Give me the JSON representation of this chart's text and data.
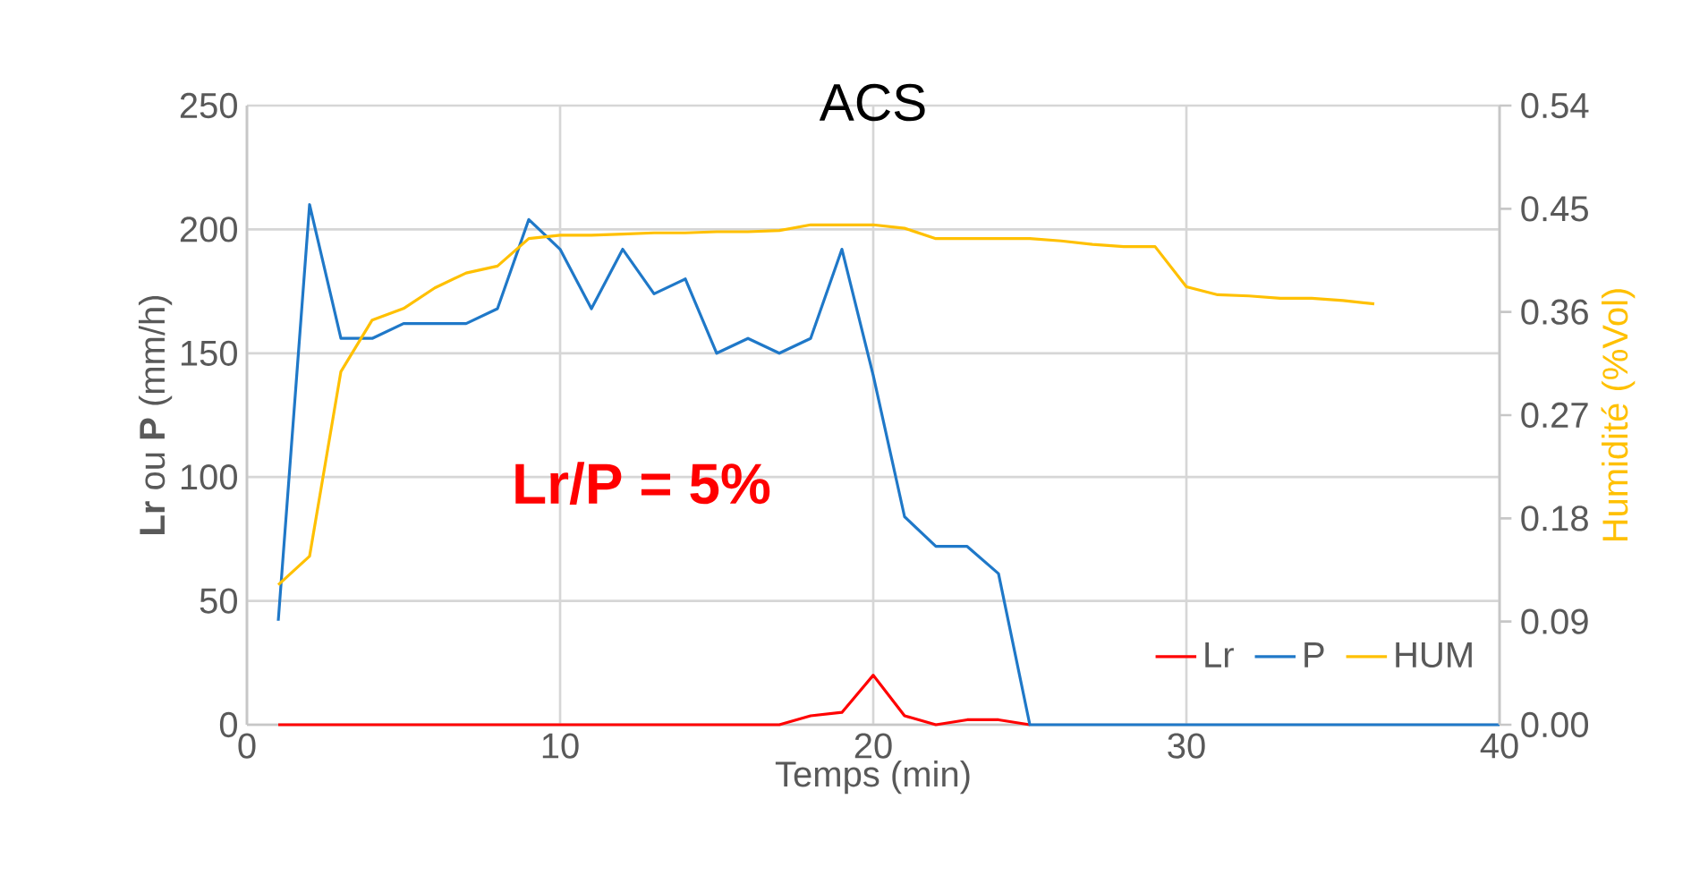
{
  "chart_data": {
    "type": "line",
    "title": "ACS",
    "xlabel": "Temps (min)",
    "ylabel": "**Lr** ou **P** (mm/h)",
    "y2label": "Humidité (%Vol)",
    "annotations": [
      "Lr/P = 5%"
    ],
    "xlim": [
      0,
      40
    ],
    "xticks": [
      0,
      10,
      20,
      30,
      40
    ],
    "ylim": [
      0,
      250
    ],
    "yticks": [
      0,
      50,
      100,
      150,
      200,
      250
    ],
    "y2lim": [
      0,
      0.54
    ],
    "y2ticks": [
      {
        "value": 0,
        "label": "0.00"
      },
      0.09,
      0.18,
      0.27,
      0.36,
      0.45,
      0.54
    ],
    "grid": true,
    "legend": "bottom right",
    "series": [
      {
        "name": "Lr",
        "color": "#ff0000",
        "x": [
          1,
          2,
          3,
          4,
          5,
          6,
          7,
          8,
          9,
          10,
          11,
          12,
          13,
          14,
          15,
          16,
          17,
          18,
          19,
          20,
          21,
          22,
          23,
          24,
          25
        ],
        "values": [
          0,
          0,
          0,
          0,
          0,
          0,
          0,
          0,
          0,
          0,
          0,
          0,
          0,
          0,
          0,
          0,
          0,
          3.6,
          5,
          20,
          3.6,
          0,
          2,
          2,
          0
        ]
      },
      {
        "name": "P",
        "color": "#1f78c8",
        "x": [
          1,
          2,
          3,
          4,
          5,
          6,
          7,
          8,
          9,
          10,
          11,
          12,
          13,
          14,
          15,
          16,
          17,
          18,
          19,
          20,
          21,
          22,
          23,
          24,
          25,
          26,
          27,
          28,
          29,
          30,
          31,
          32,
          33,
          34,
          35,
          36,
          37,
          38,
          39,
          40
        ],
        "values": [
          42,
          210,
          156,
          156,
          162,
          162,
          162,
          168,
          204,
          192,
          168,
          192,
          174,
          180,
          150,
          156,
          150,
          156,
          192,
          141,
          84,
          72,
          72,
          61,
          0,
          0,
          0,
          0,
          0,
          0,
          0,
          0,
          0,
          0,
          0,
          0,
          0,
          0,
          0,
          0
        ]
      },
      {
        "name": "HUM",
        "color": "#ffc000",
        "axis": "y2",
        "x": [
          1,
          2,
          3,
          4,
          5,
          6,
          7,
          8,
          9,
          10,
          11,
          12,
          13,
          14,
          15,
          16,
          17,
          18,
          19,
          20,
          21,
          22,
          23,
          24,
          25,
          26,
          27,
          28,
          29,
          30,
          31,
          32,
          33,
          34,
          35,
          36
        ],
        "values": [
          0.122,
          0.147,
          0.308,
          0.353,
          0.363,
          0.381,
          0.394,
          0.4,
          0.424,
          0.427,
          0.427,
          0.428,
          0.429,
          0.429,
          0.43,
          0.43,
          0.431,
          0.436,
          0.436,
          0.436,
          0.433,
          0.424,
          0.424,
          0.424,
          0.424,
          0.422,
          0.419,
          0.417,
          0.417,
          0.382,
          0.375,
          0.374,
          0.372,
          0.372,
          0.37,
          0.367
        ]
      }
    ]
  }
}
